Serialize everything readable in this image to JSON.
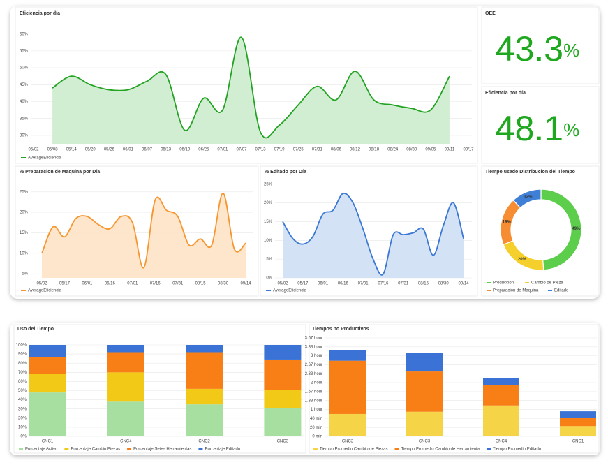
{
  "kpis": [
    {
      "title": "OEE",
      "value": 43.3,
      "unit": "%"
    },
    {
      "title": "Eficiencia por día",
      "value": 48.1,
      "unit": "%"
    }
  ],
  "chart_data": [
    {
      "type": "line",
      "title": "Eficiencia por día",
      "area": true,
      "categories": [
        "05/02",
        "05/08",
        "05/14",
        "05/20",
        "05/26",
        "06/01",
        "06/07",
        "06/13",
        "06/19",
        "06/25",
        "07/01",
        "07/07",
        "07/13",
        "07/19",
        "07/25",
        "07/31",
        "08/06",
        "08/12",
        "08/18",
        "08/24",
        "08/30",
        "09/05",
        "09/11",
        "09/17"
      ],
      "series": [
        {
          "name": "AverageEficiencia",
          "color": "#22a322",
          "fill": "#cdeccd",
          "values": [
            null,
            44,
            47.5,
            45,
            43.5,
            43.5,
            46,
            48,
            31.5,
            41,
            37.5,
            59,
            31,
            33,
            39,
            44.5,
            40.5,
            49,
            40.5,
            39,
            38,
            37.5,
            47.5,
            null
          ]
        }
      ],
      "ylim": [
        27.5,
        62
      ],
      "yticks": [
        {
          "value": 30,
          "label": "30%"
        },
        {
          "value": 35,
          "label": "35%"
        },
        {
          "value": 40,
          "label": "40%"
        },
        {
          "value": 45,
          "label": "45%"
        },
        {
          "value": 50,
          "label": "50%"
        },
        {
          "value": 55,
          "label": "55%"
        },
        {
          "value": 60,
          "label": "60%"
        }
      ],
      "grid": true,
      "legend": "bottom-left"
    },
    {
      "type": "line",
      "title": "% Preparacion de Maquina por Día",
      "area": true,
      "categories": [
        "05/02",
        null,
        "05/17",
        null,
        "06/01",
        null,
        "06/16",
        null,
        "07/01",
        null,
        "07/16",
        null,
        "07/31",
        null,
        "08/15",
        null,
        "08/30",
        null,
        "09/14"
      ],
      "series": [
        {
          "name": "AverageEficiencia",
          "color": "#f7962f",
          "fill": "#fde3c7",
          "values": [
            10,
            16.5,
            14,
            18.5,
            19,
            17,
            16,
            19,
            17.5,
            6.5,
            23,
            20.5,
            19,
            12,
            13.5,
            12,
            24.7,
            11,
            12.5
          ]
        }
      ],
      "ylim": [
        4,
        26.5
      ],
      "yticks": [
        {
          "value": 5,
          "label": "5%"
        },
        {
          "value": 10,
          "label": "10%"
        },
        {
          "value": 15,
          "label": "15%"
        },
        {
          "value": 20,
          "label": "20%"
        },
        {
          "value": 25,
          "label": "25%"
        }
      ],
      "grid": true,
      "legend": "bottom-left"
    },
    {
      "type": "line",
      "title": "% Editado por Día",
      "area": true,
      "categories": [
        "05/02",
        null,
        "05/17",
        null,
        "06/01",
        null,
        "06/16",
        null,
        "07/01",
        null,
        "07/16",
        null,
        "07/31",
        null,
        "08/15",
        null,
        "08/30",
        null,
        "09/14"
      ],
      "series": [
        {
          "name": "AverageEficiencia",
          "color": "#3a78d4",
          "fill": "#cfdff5",
          "values": [
            15,
            10.5,
            9,
            11,
            17,
            18,
            22.5,
            20,
            13,
            5,
            1,
            11.5,
            11.5,
            12,
            13,
            6,
            14,
            20,
            10.5
          ]
        }
      ],
      "ylim": [
        0,
        25.5
      ],
      "yticks": [
        {
          "value": 0,
          "label": "0%"
        },
        {
          "value": 5,
          "label": "5%"
        },
        {
          "value": 10,
          "label": "10%"
        },
        {
          "value": 15,
          "label": "15%"
        },
        {
          "value": 20,
          "label": "20%"
        },
        {
          "value": 25,
          "label": "25%"
        }
      ],
      "grid": true,
      "legend": "bottom-left"
    },
    {
      "type": "pie",
      "title": "Tiempo usado Distribucion del Tiempo",
      "donut": true,
      "categories": [
        "Produccion",
        "Cambio de Pieza",
        "Preparacion de Maquina",
        "Editado"
      ],
      "values": [
        49,
        20,
        19,
        12
      ],
      "value_labels": [
        "49%",
        "20%",
        "19%",
        "12%"
      ],
      "colors": [
        "#5dcd4c",
        "#f5cf2b",
        "#f78d32",
        "#3f7fd6"
      ],
      "legend": "bottom"
    },
    {
      "type": "bar",
      "title": "Uso del Tiempo",
      "stacked": true,
      "categories": [
        "CNC1",
        "CNC4",
        "CNC2",
        "CNC3"
      ],
      "series": [
        {
          "name": "Porcentaje Activo",
          "color": "#a7dfa0",
          "values": [
            48,
            38,
            35,
            31
          ]
        },
        {
          "name": "Porcentaje Cambio Piezas",
          "color": "#f3c918",
          "values": [
            20,
            32,
            17,
            20
          ]
        },
        {
          "name": "Porcentaje Setes Herramientas",
          "color": "#f77f16",
          "values": [
            19,
            22,
            40,
            33
          ]
        },
        {
          "name": "Porcentaje Editado",
          "color": "#3a72d5",
          "values": [
            13,
            8,
            8,
            16
          ]
        }
      ],
      "ylim": [
        0,
        100
      ],
      "yticks": [
        {
          "value": 0,
          "label": "0%"
        },
        {
          "value": 10,
          "label": "10%"
        },
        {
          "value": 20,
          "label": "20%"
        },
        {
          "value": 30,
          "label": "30%"
        },
        {
          "value": 40,
          "label": "40%"
        },
        {
          "value": 50,
          "label": "50%"
        },
        {
          "value": 60,
          "label": "60%"
        },
        {
          "value": 70,
          "label": "70%"
        },
        {
          "value": 80,
          "label": "80%"
        },
        {
          "value": 90,
          "label": "90%"
        },
        {
          "value": 100,
          "label": "100%"
        }
      ],
      "grid": true,
      "legend": "bottom-left"
    },
    {
      "type": "bar",
      "title": "Tiempos no Productivos",
      "stacked": true,
      "categories": [
        "CNC2",
        "CNC3",
        "CNC4",
        "CNC1"
      ],
      "series": [
        {
          "name": "Tiempo Promedio Cambio de Piezas",
          "color": "#f5d547",
          "values": [
            50,
            55,
            69,
            23
          ]
        },
        {
          "name": "Tiempo Promedio Cambio de Herramienta",
          "color": "#f77f16",
          "values": [
            119,
            90,
            45,
            19
          ]
        },
        {
          "name": "Tiempo Promedio Editado",
          "color": "#3a72d5",
          "values": [
            23,
            42,
            16,
            14
          ]
        }
      ],
      "ylim": [
        0,
        220
      ],
      "yticks": [
        {
          "value": 0,
          "label": "0 min"
        },
        {
          "value": 20,
          "label": "20 min"
        },
        {
          "value": 40,
          "label": "40 min"
        },
        {
          "value": 60,
          "label": "1 hour"
        },
        {
          "value": 80,
          "label": "1.33 hour"
        },
        {
          "value": 100,
          "label": "1.67 hour"
        },
        {
          "value": 120,
          "label": "2 hour"
        },
        {
          "value": 140,
          "label": "2.33 hour"
        },
        {
          "value": 160,
          "label": "2.67 hour"
        },
        {
          "value": 180,
          "label": "3 hour"
        },
        {
          "value": 200,
          "label": "3.33 hour"
        },
        {
          "value": 220,
          "label": "3.67 hour"
        }
      ],
      "grid": true,
      "legend": "bottom-left"
    }
  ]
}
